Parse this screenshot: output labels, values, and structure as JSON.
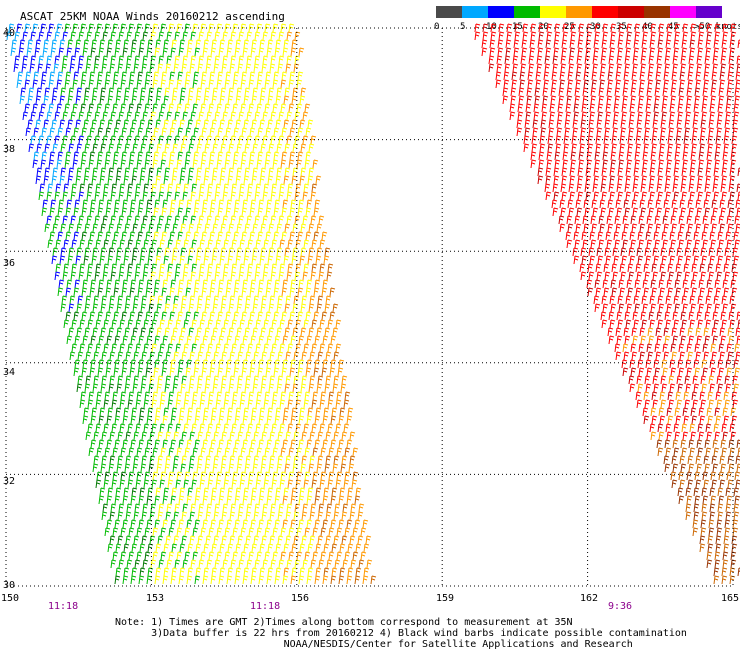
{
  "header": {
    "title": "ASCAT 25KM NOAA Winds 20160212 ascending"
  },
  "legend": {
    "units": "knots",
    "bins": [
      {
        "label": "0",
        "color": "#4a4a4a"
      },
      {
        "label": "5",
        "color": "#00a8ff"
      },
      {
        "label": "10",
        "color": "#0000ff"
      },
      {
        "label": "15",
        "color": "#00bb00"
      },
      {
        "label": "20",
        "color": "#ffff00"
      },
      {
        "label": "25",
        "color": "#ff9900"
      },
      {
        "label": "30",
        "color": "#ff0000"
      },
      {
        "label": "35",
        "color": "#cc0000"
      },
      {
        "label": "40",
        "color": "#993300"
      },
      {
        "label": "45",
        "color": "#ff00ff"
      },
      {
        "label": ">50",
        "color": "#6600cc"
      }
    ],
    "last_label": ">50 knots"
  },
  "map": {
    "lat_labels": [
      "40",
      "38",
      "36",
      "34",
      "32",
      "30"
    ],
    "lon_labels": [
      "150",
      "153",
      "156",
      "159",
      "162",
      "165"
    ],
    "lat_range": [
      30,
      40
    ],
    "lon_range": [
      150,
      165
    ],
    "grid": "dotted",
    "times": [
      {
        "label": "11:18",
        "lon": 151
      },
      {
        "label": "11:18",
        "lon": 155
      },
      {
        "label": "9:36",
        "lon": 163
      }
    ]
  },
  "notes": {
    "line1": "Note: 1) Times are GMT 2)Times along bottom correspond to measurement at 35N",
    "line2": "      3)Data buffer is 22 hrs from 20160212 4) Black wind barbs indicate possible contamination",
    "line3": "                            NOAA/NESDIS/Center for Satellite Applications and Research"
  }
}
